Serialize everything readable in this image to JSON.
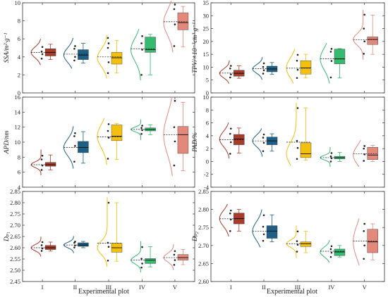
{
  "figure": {
    "xlabel": "Experimental plot"
  },
  "chart_data": [
    {
      "type": "box",
      "ylabel": "SSA/m²·g⁻¹",
      "ylim": [
        0,
        10
      ],
      "yticks": [
        "0",
        "2",
        "4",
        "6",
        "8",
        "10"
      ],
      "categories": [
        "I",
        "II",
        "III",
        "IV",
        "V"
      ],
      "colors": [
        "#A93B2A",
        "#1D5F85",
        "#F3C10D",
        "#35BA6F",
        "#E3897C"
      ],
      "boxes": [
        {
          "q1": 4.1,
          "median": 4.5,
          "q3": 4.9,
          "mean": 4.5,
          "whisker_low": 3.7,
          "whisker_high": 5.4,
          "points": [
            3.8,
            4.3,
            4.6,
            5.1
          ]
        },
        {
          "q1": 3.7,
          "median": 4.2,
          "q3": 4.8,
          "mean": 4.3,
          "whisker_low": 3.3,
          "whisker_high": 5.5,
          "points": [
            3.6,
            4.0,
            4.9,
            5.2
          ]
        },
        {
          "q1": 3.2,
          "median": 3.9,
          "q3": 4.5,
          "mean": 4.0,
          "whisker_low": 2.2,
          "whisker_high": 5.8,
          "points": [
            2.2,
            3.4,
            5.0,
            5.5,
            6.1
          ]
        },
        {
          "q1": 4.5,
          "median": 4.8,
          "q3": 6.2,
          "mean": 4.9,
          "whisker_low": 2.0,
          "whisker_high": 6.5,
          "points": [
            2.0,
            4.8,
            5.5,
            6.3
          ]
        },
        {
          "q1": 7.0,
          "median": 7.8,
          "q3": 8.9,
          "mean": 7.9,
          "whisker_low": 5.1,
          "whisker_high": 9.6,
          "points": [
            5.2,
            7.6,
            9.3,
            9.8
          ]
        }
      ]
    },
    {
      "type": "box",
      "ylabel": "TPV/×10⁻³cm³·g⁻¹",
      "ylim": [
        0,
        35
      ],
      "yticks": [
        "0",
        "5",
        "10",
        "15",
        "20",
        "25",
        "30",
        "35"
      ],
      "categories": [
        "I",
        "II",
        "III",
        "IV",
        "V"
      ],
      "colors": [
        "#A93B2A",
        "#1D5F85",
        "#F3C10D",
        "#35BA6F",
        "#E3897C"
      ],
      "boxes": [
        {
          "q1": 6.5,
          "median": 7.6,
          "q3": 8.8,
          "mean": 7.7,
          "whisker_low": 5.7,
          "whisker_high": 10.5,
          "points": [
            6.0,
            7.2,
            9.5,
            10.5
          ]
        },
        {
          "q1": 8.2,
          "median": 9.3,
          "q3": 10.4,
          "mean": 9.4,
          "whisker_low": 7.2,
          "whisker_high": 11.8,
          "points": [
            7.5,
            8.8,
            10.1,
            11.5
          ]
        },
        {
          "q1": 7.3,
          "median": 9.7,
          "q3": 12.5,
          "mean": 9.6,
          "whisker_low": 5.8,
          "whisker_high": 15.0,
          "points": [
            5.8,
            9.0,
            12.5,
            14.8
          ]
        },
        {
          "q1": 11.3,
          "median": 13.2,
          "q3": 17.0,
          "mean": 13.3,
          "whisker_low": 5.8,
          "whisker_high": 17.2,
          "points": [
            6.0,
            12.4,
            16.0,
            17.1
          ]
        },
        {
          "q1": 18.8,
          "median": 20.8,
          "q3": 21.8,
          "mean": 20.7,
          "whisker_low": 15.0,
          "whisker_high": 30.2,
          "points": [
            15.2,
            20.0,
            25.0,
            30.4
          ]
        }
      ]
    },
    {
      "type": "box",
      "ylabel": "APD/nm",
      "ylim": [
        4,
        16
      ],
      "yticks": [
        "4",
        "6",
        "8",
        "10",
        "12",
        "14",
        "16"
      ],
      "categories": [
        "I",
        "II",
        "III",
        "IV",
        "V"
      ],
      "colors": [
        "#A93B2A",
        "#1D5F85",
        "#F3C10D",
        "#35BA6F",
        "#E3897C"
      ],
      "boxes": [
        {
          "q1": 6.8,
          "median": 7.0,
          "q3": 7.3,
          "mean": 7.0,
          "whisker_low": 6.3,
          "whisker_high": 8.3,
          "points": [
            6.3,
            6.9,
            7.7,
            8.2
          ]
        },
        {
          "q1": 8.6,
          "median": 9.3,
          "q3": 10.1,
          "mean": 9.3,
          "whisker_low": 7.2,
          "whisker_high": 11.4,
          "points": [
            7.4,
            9.5,
            10.8,
            11.2
          ]
        },
        {
          "q1": 10.2,
          "median": 10.8,
          "q3": 12.3,
          "mean": 10.7,
          "whisker_low": 7.7,
          "whisker_high": 12.5,
          "points": [
            7.8,
            10.6,
            11.5,
            12.4
          ]
        },
        {
          "q1": 11.5,
          "median": 11.7,
          "q3": 11.9,
          "mean": 11.7,
          "whisker_low": 11.0,
          "whisker_high": 12.3,
          "points": [
            11.1,
            11.6,
            11.9,
            12.2
          ]
        },
        {
          "q1": 8.5,
          "median": 11.0,
          "q3": 12.1,
          "mean": 11.0,
          "whisker_low": 6.2,
          "whisker_high": 15.3,
          "points": [
            6.9,
            10.1,
            12.0,
            15.5
          ]
        }
      ]
    },
    {
      "type": "box",
      "ylabel": "PAD/%",
      "ylim": [
        -4,
        10
      ],
      "yticks": [
        "-4",
        "-2",
        "0",
        "2",
        "4",
        "6",
        "8",
        "10"
      ],
      "categories": [
        "I",
        "II",
        "III",
        "IV",
        "V"
      ],
      "colors": [
        "#A93B2A",
        "#1D5F85",
        "#F3C10D",
        "#35BA6F",
        "#E3897C"
      ],
      "boxes": [
        {
          "q1": 2.6,
          "median": 3.5,
          "q3": 4.2,
          "mean": 3.4,
          "whisker_low": 1.3,
          "whisker_high": 5.2,
          "points": [
            1.2,
            3.0,
            4.3,
            5.1
          ]
        },
        {
          "q1": 2.6,
          "median": 3.2,
          "q3": 3.8,
          "mean": 3.2,
          "whisker_low": 1.6,
          "whisker_high": 4.3,
          "points": [
            1.6,
            2.9,
            3.7,
            4.2
          ]
        },
        {
          "q1": 0.6,
          "median": 1.2,
          "q3": 2.9,
          "mean": 3.0,
          "whisker_low": 0.2,
          "whisker_high": 8.3,
          "points": [
            0.4,
            2.1,
            3.2,
            8.3
          ]
        },
        {
          "q1": 0.4,
          "median": 0.6,
          "q3": 0.8,
          "mean": 0.6,
          "whisker_low": 0.0,
          "whisker_high": 1.4,
          "points": [
            0.0,
            0.5,
            0.8,
            1.3
          ]
        },
        {
          "q1": 0.3,
          "median": 1.0,
          "q3": 2.2,
          "mean": 1.2,
          "whisker_low": 0.0,
          "whisker_high": 2.5,
          "points": [
            0.1,
            1.1,
            2.0,
            2.4
          ]
        }
      ]
    },
    {
      "type": "box",
      "ylabel": "Dₚ₁",
      "ylim": [
        2.45,
        2.85
      ],
      "yticks": [
        "2.45",
        "2.50",
        "2.55",
        "2.60",
        "2.65",
        "2.70",
        "2.75",
        "2.80",
        "2.85"
      ],
      "categories": [
        "I",
        "II",
        "III",
        "IV",
        "V"
      ],
      "colors": [
        "#A93B2A",
        "#1D5F85",
        "#F3C10D",
        "#35BA6F",
        "#E3897C"
      ],
      "boxes": [
        {
          "q1": 2.592,
          "median": 2.6,
          "q3": 2.61,
          "mean": 2.6,
          "whisker_low": 2.585,
          "whisker_high": 2.625,
          "points": [
            2.586,
            2.597,
            2.611,
            2.625
          ]
        },
        {
          "q1": 2.606,
          "median": 2.612,
          "q3": 2.622,
          "mean": 2.612,
          "whisker_low": 2.6,
          "whisker_high": 2.628,
          "points": [
            2.601,
            2.61,
            2.622,
            2.627
          ]
        },
        {
          "q1": 2.58,
          "median": 2.6,
          "q3": 2.62,
          "mean": 2.62,
          "whisker_low": 2.54,
          "whisker_high": 2.8,
          "points": [
            2.543,
            2.604,
            2.622,
            2.8
          ]
        },
        {
          "q1": 2.53,
          "median": 2.545,
          "q3": 2.552,
          "mean": 2.545,
          "whisker_low": 2.515,
          "whisker_high": 2.605,
          "points": [
            2.512,
            2.53,
            2.551,
            2.603
          ]
        },
        {
          "q1": 2.545,
          "median": 2.556,
          "q3": 2.57,
          "mean": 2.556,
          "whisker_low": 2.525,
          "whisker_high": 2.592,
          "points": [
            2.524,
            2.545,
            2.569,
            2.585
          ]
        }
      ]
    },
    {
      "type": "box",
      "ylabel": "Dₚ₂",
      "ylim": [
        2.6,
        2.85
      ],
      "yticks": [
        "2.60",
        "2.65",
        "2.70",
        "2.75",
        "2.80",
        "2.85"
      ],
      "categories": [
        "I",
        "II",
        "III",
        "IV",
        "V"
      ],
      "colors": [
        "#A93B2A",
        "#1D5F85",
        "#F3C10D",
        "#35BA6F",
        "#E3897C"
      ],
      "boxes": [
        {
          "q1": 2.76,
          "median": 2.775,
          "q3": 2.79,
          "mean": 2.774,
          "whisker_low": 2.74,
          "whisker_high": 2.8,
          "points": [
            2.74,
            2.772,
            2.789,
            2.797
          ]
        },
        {
          "q1": 2.72,
          "median": 2.74,
          "q3": 2.755,
          "mean": 2.74,
          "whisker_low": 2.71,
          "whisker_high": 2.785,
          "points": [
            2.713,
            2.731,
            2.752,
            2.784
          ]
        },
        {
          "q1": 2.697,
          "median": 2.705,
          "q3": 2.71,
          "mean": 2.705,
          "whisker_low": 2.68,
          "whisker_high": 2.74,
          "points": [
            2.683,
            2.702,
            2.712,
            2.739
          ]
        },
        {
          "q1": 2.672,
          "median": 2.682,
          "q3": 2.69,
          "mean": 2.684,
          "whisker_low": 2.668,
          "whisker_high": 2.7,
          "points": [
            2.668,
            2.68,
            2.69,
            2.698
          ]
        },
        {
          "q1": 2.68,
          "median": 2.71,
          "q3": 2.745,
          "mean": 2.712,
          "whisker_low": 2.66,
          "whisker_high": 2.76,
          "points": [
            2.663,
            2.7,
            2.74,
            2.76
          ]
        }
      ]
    }
  ]
}
